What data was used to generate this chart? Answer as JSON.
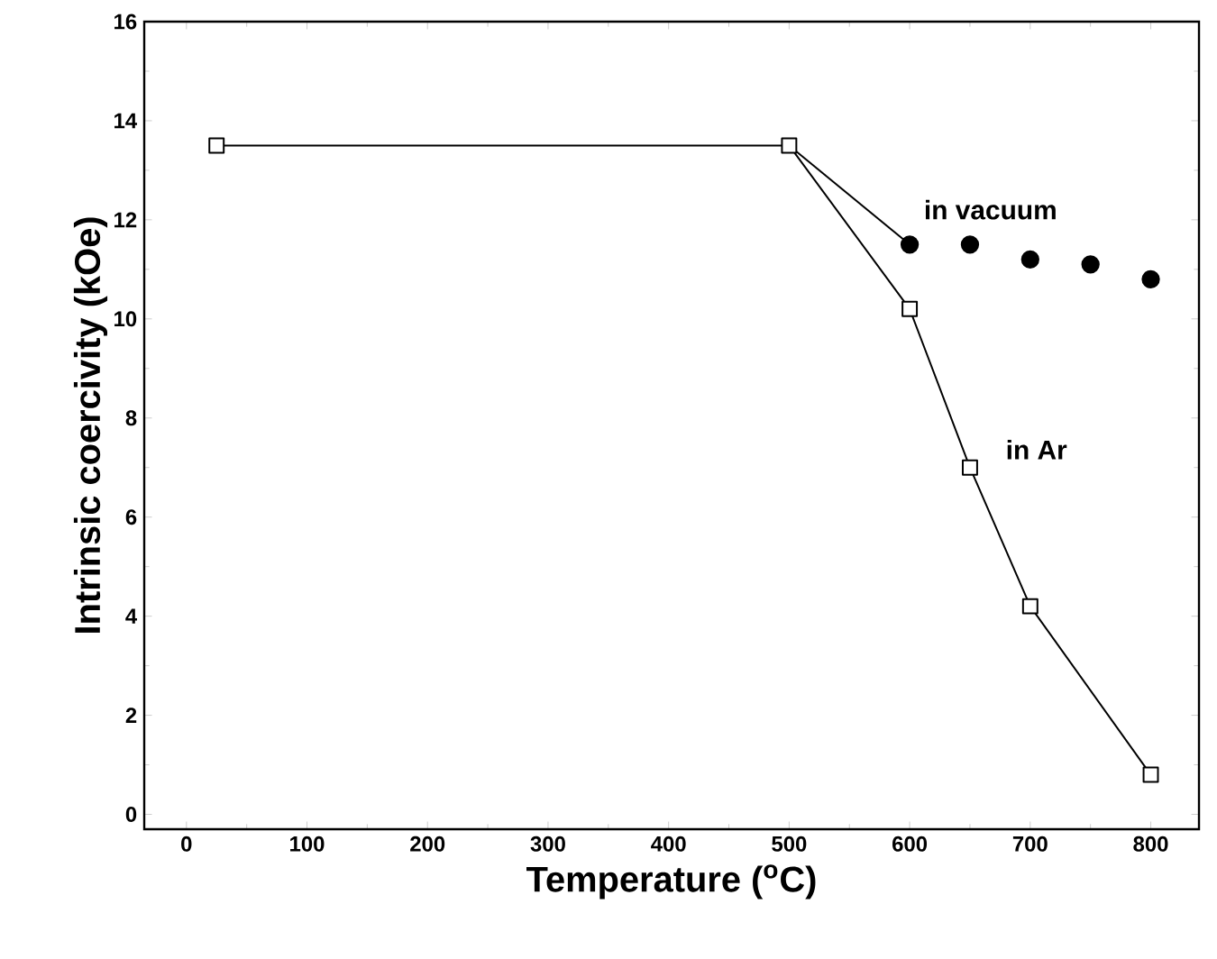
{
  "chart_data": {
    "type": "line",
    "xlabel": "Temperature ($^{o}$C)",
    "ylabel": "Intrinsic coercivity (kOe)",
    "xlim": [
      -35,
      840
    ],
    "ylim": [
      -0.3,
      16
    ],
    "xticks": [
      0,
      100,
      200,
      300,
      400,
      500,
      600,
      700,
      800
    ],
    "yticks": [
      0,
      2,
      4,
      6,
      8,
      10,
      12,
      14,
      16
    ],
    "series": [
      {
        "name": "in Ar",
        "marker": "square",
        "color": "#000000",
        "x": [
          25,
          500,
          600,
          650,
          700,
          800
        ],
        "values": [
          13.5,
          13.5,
          10.2,
          7.0,
          4.2,
          0.8
        ]
      },
      {
        "type": "line",
        "marker": "none",
        "color": "#000000",
        "x": [
          500,
          600
        ],
        "values": [
          13.5,
          11.5
        ]
      },
      {
        "name": "in vacuum",
        "type": "scatter",
        "marker": "circle",
        "color": "#000000",
        "x": [
          600,
          650,
          700,
          750,
          800
        ],
        "values": [
          11.5,
          11.5,
          11.2,
          11.1,
          10.8
        ]
      }
    ]
  }
}
